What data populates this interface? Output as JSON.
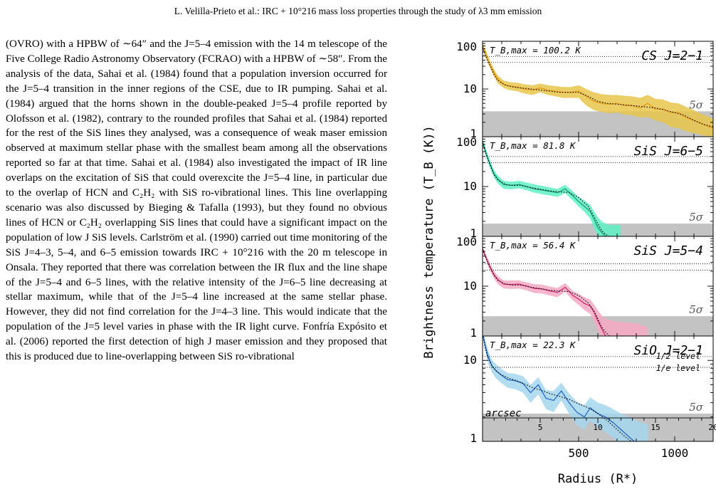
{
  "header": {
    "running_title": "L. Velilla-Prieto  et al.: IRC + 10°216 mass loss properties through the study of λ3 mm emission"
  },
  "body_text": "(OVRO) with a HPBW of ∼64″ and the J=5–4 emission with the 14 m telescope of the Five College Radio Astronomy Observatory (FCRAO) with a HPBW of ∼58″. From the analysis of the data, Sahai et al. (1984) found that a population inversion occurred for the J=5–4 transition in the inner regions of the CSE, due to IR pumping. Sahai et al. (1984) argued that the horns shown in the double-peaked J=5–4 profile reported by Olofsson et al. (1982), contrary to the rounded profiles that Sahai et al. (1984) reported for the rest of the SiS lines they analysed, was a consequence of weak maser emission observed at maximum stellar phase with the smallest beam among all the observations reported so far at that time. Sahai et al. (1984) also investigated the impact of IR line overlaps on the excitation of SiS that could overexcite the J=5–4 line, in particular due to the overlap of HCN and C₂H₂ with SiS ro-vibrational lines. This line overlapping scenario was also discussed by Bieging & Tafalla (1993), but they found no obvious lines of HCN or C₂H₂ overlapping SiS lines that could have a significant impact on the population of low J SiS levels. Carlström et al. (1990) carried out time monitoring of the SiS J=4–3, 5–4, and 6–5 emission towards IRC + 10°216 with the 20 m telescope in Onsala. They reported that there was correlation between the IR flux and the line shape of the J=5–4 and 6–5 lines, with the relative intensity of the J=6–5 line decreasing at stellar maximum, while that of the J=5–4 line increased at the same stellar phase. However, they did not find correlation for the J=4–3 line. This would indicate that the population of the J=5 level varies in phase with the IR light curve. Fonfría Expósito et al. (2006) reported the first detection of high J maser emission and they proposed that this is produced due to line-overlapping between SiS ro-vibrational",
  "chart_data": [
    {
      "type": "line",
      "ylabel": "Brightness temperature (T_B (K))",
      "xlabel": "Radius (R*)",
      "yscale": "log",
      "ylim": [
        1,
        100
      ],
      "xlim": [
        0,
        1200
      ],
      "ytick_labels": [
        "1",
        "10",
        "100"
      ],
      "grid": false,
      "title": "CS J=2−1",
      "tb_max_label": "T_B,max = 100.2 K",
      "noise_label": "5σ",
      "noise_level": 3.4,
      "level_half": 48,
      "level_e": 36,
      "color": "#e8c54a",
      "line_color": "#e89a10",
      "series": [
        {
          "x": [
            0,
            20,
            40,
            60,
            80,
            110,
            140,
            180,
            220,
            260,
            300,
            340,
            380,
            420,
            460,
            500,
            540,
            580,
            620,
            660,
            700,
            740,
            780,
            820,
            860,
            900,
            940,
            980,
            1020,
            1060,
            1100,
            1140,
            1180,
            1200
          ],
          "y": [
            80,
            50,
            32,
            22,
            16,
            12.5,
            11.5,
            11,
            10,
            9.5,
            10.5,
            9.5,
            9,
            8.5,
            8.5,
            9,
            7,
            5.5,
            5,
            4.8,
            5,
            4.5,
            4.5,
            4,
            5,
            3.8,
            3.8,
            3.2,
            3.2,
            2.5,
            2.2,
            1.9,
            1.6,
            1.5
          ],
          "band_lo": [
            70,
            42,
            27,
            18,
            13,
            10.5,
            9.5,
            9,
            8,
            7.5,
            8.5,
            7.5,
            7,
            6.5,
            6.5,
            6.5,
            4.5,
            3.6,
            3.3,
            3.1,
            3.2,
            2.9,
            2.8,
            2.5,
            2.6,
            2.2,
            2.0,
            1.6,
            1.5,
            1.3,
            1.2,
            1.1,
            1.0,
            1.0
          ],
          "band_hi": [
            95,
            60,
            38,
            26,
            19,
            15,
            14,
            13.5,
            12.5,
            12,
            13,
            12,
            11.5,
            11,
            11,
            12,
            10,
            8.5,
            7.8,
            7.5,
            7.5,
            7.2,
            7.0,
            6.5,
            7.5,
            6.2,
            6.0,
            5.2,
            5.0,
            4.2,
            3.6,
            3.0,
            2.6,
            2.3
          ]
        },
        {
          "x": [
            0,
            20,
            40,
            60,
            80,
            120,
            160,
            200,
            250,
            300,
            350,
            400,
            450,
            500,
            550,
            600,
            650,
            700,
            750,
            800,
            850,
            900,
            950,
            1000,
            1050,
            1100,
            1150,
            1200
          ],
          "y": [
            75,
            45,
            30,
            20,
            15,
            12,
            11,
            10.5,
            10,
            9.5,
            9,
            8.5,
            8.5,
            8.5,
            7,
            5.5,
            5,
            4.8,
            4.6,
            4.4,
            4.2,
            4,
            3.6,
            3.2,
            2.8,
            2.2,
            1.8,
            1.6
          ]
        }
      ]
    },
    {
      "type": "line",
      "yscale": "log",
      "ylim": [
        1,
        100
      ],
      "xlim": [
        0,
        1200
      ],
      "ytick_labels": [
        "1",
        "10",
        "100"
      ],
      "grid": false,
      "title": "SiS J=6−5",
      "tb_max_label": "T_B,max = 81.8 K",
      "noise_label": "5σ",
      "noise_level": 1.8,
      "level_half": 40,
      "level_e": 30,
      "color": "#5ef0c4",
      "line_color": "#0f9e78",
      "series": [
        {
          "x": [
            0,
            20,
            40,
            60,
            80,
            110,
            150,
            190,
            230,
            270,
            310,
            350,
            390,
            430,
            470,
            500,
            530,
            560,
            580,
            600,
            620,
            640,
            660,
            680,
            720
          ],
          "y": [
            80,
            45,
            28,
            18,
            14,
            11,
            10.5,
            11,
            10,
            9,
            8.5,
            8,
            7.5,
            9,
            6.5,
            5,
            4,
            3.2,
            2.2,
            1.5,
            1.2,
            1.0,
            0.9,
            0.85,
            0.8
          ],
          "band_lo": [
            70,
            38,
            23,
            15,
            11.5,
            9,
            8.8,
            9.2,
            8.4,
            7.5,
            7,
            6.6,
            6.2,
            7.4,
            5.2,
            4,
            3.1,
            2.3,
            1.5,
            1.0,
            0.8,
            0.7,
            0.6,
            0.6,
            0.6
          ],
          "band_hi": [
            92,
            52,
            32,
            21,
            16.5,
            13,
            12.5,
            13,
            12,
            11,
            10.3,
            9.6,
            9,
            10.8,
            8,
            6.2,
            5.2,
            4.3,
            3.2,
            2.4,
            2.0,
            1.8,
            1.7,
            1.7,
            1.7
          ]
        },
        {
          "x": [
            0,
            20,
            40,
            60,
            80,
            120,
            160,
            200,
            250,
            300,
            350,
            400,
            450,
            500,
            550,
            580,
            600,
            620,
            640,
            660
          ],
          "y": [
            75,
            42,
            26,
            17,
            13.5,
            11,
            10.5,
            10.5,
            9.5,
            8.8,
            8.2,
            7.8,
            7.6,
            6,
            4,
            2.5,
            1.8,
            1.3,
            1.1,
            1.0
          ]
        }
      ]
    },
    {
      "type": "line",
      "yscale": "log",
      "ylim": [
        1,
        100
      ],
      "xlim": [
        0,
        1200
      ],
      "ytick_labels": [
        "1",
        "10",
        "100"
      ],
      "grid": false,
      "title": "SiS J=5−4",
      "tb_max_label": "T_B,max = 56.4 K",
      "noise_label": "5σ",
      "noise_level": 2.5,
      "level_half": 28,
      "level_e": 21,
      "color": "#f7a9c4",
      "line_color": "#d02a70",
      "series": [
        {
          "x": [
            0,
            20,
            40,
            60,
            80,
            110,
            150,
            190,
            230,
            270,
            310,
            350,
            390,
            430,
            470,
            500,
            530,
            560,
            580,
            600,
            620,
            640,
            660,
            680,
            720,
            800,
            860
          ],
          "y": [
            56,
            36,
            24,
            17,
            13.5,
            11,
            10.8,
            11,
            10,
            9,
            8.8,
            8,
            7.5,
            9.5,
            6.5,
            5.5,
            4.5,
            4,
            3,
            2,
            1.4,
            1.0,
            0.9,
            0.85,
            0.8,
            0.8,
            0.8
          ],
          "band_lo": [
            50,
            31,
            20,
            14,
            11,
            9,
            8.8,
            9,
            8.2,
            7.3,
            7.1,
            6.5,
            6,
            7.7,
            5.2,
            4.2,
            3.3,
            2.8,
            2,
            1.3,
            0.9,
            0.7,
            0.6,
            0.6,
            0.6,
            0.6,
            0.6
          ],
          "band_hi": [
            63,
            42,
            28,
            20,
            16,
            13,
            13,
            13,
            12,
            11,
            10.7,
            9.8,
            9.2,
            11.5,
            8,
            7,
            6,
            5.4,
            4.3,
            3.3,
            2.6,
            2.2,
            2.1,
            2.0,
            1.9,
            1.8,
            1.5
          ]
        },
        {
          "x": [
            0,
            20,
            40,
            60,
            80,
            120,
            160,
            200,
            250,
            300,
            350,
            400,
            450,
            500,
            550,
            580,
            600,
            620,
            640,
            660
          ],
          "y": [
            55,
            35,
            23,
            16.5,
            13,
            11,
            10.5,
            10.5,
            9.6,
            8.9,
            8.3,
            8,
            7.8,
            6.5,
            4.6,
            3.2,
            2.2,
            1.5,
            1.2,
            1.0
          ]
        }
      ]
    },
    {
      "type": "line",
      "yscale": "log",
      "ylim": [
        1,
        20
      ],
      "xlim": [
        0,
        1200
      ],
      "ytick_labels": [
        "1",
        "10"
      ],
      "grid": false,
      "title": "SiO J=2−1",
      "tb_max_label": "T_B,max = 22.3 K",
      "noise_label": "5σ",
      "noise_level": 2.2,
      "level_half": 11.15,
      "level_e": 8.2,
      "level_half_label": "1/2 level",
      "level_e_label": "1/e level",
      "arcsec_label": "arcsec",
      "arcsec_ticks": [
        "5",
        "10",
        "15",
        "20"
      ],
      "arcsec_tick_positions_R": [
        300,
        600,
        900,
        1200
      ],
      "xtick_labels": [
        "500",
        "1000"
      ],
      "color": "#a4d6ec",
      "line_color": "#2a6ac9",
      "series": [
        {
          "x": [
            0,
            15,
            30,
            50,
            70,
            100,
            130,
            170,
            210,
            250,
            290,
            330,
            370,
            410,
            450,
            490,
            530,
            560,
            600,
            640,
            680,
            720,
            760,
            800,
            860
          ],
          "y": [
            22,
            15,
            11,
            8.5,
            7.5,
            6.5,
            5.8,
            5.6,
            5.2,
            4,
            5,
            3.4,
            3.2,
            4.2,
            3.0,
            2.3,
            2.0,
            2.6,
            2.2,
            2.0,
            1.7,
            1.4,
            1.15,
            0.95,
            0.85
          ],
          "band_lo": [
            20,
            12.5,
            9,
            7,
            6,
            5.2,
            4.6,
            4.4,
            4,
            3,
            3.8,
            2.5,
            2.3,
            3.2,
            2.2,
            1.6,
            1.4,
            1.8,
            1.5,
            1.3,
            1.1,
            0.9,
            0.8,
            0.7,
            0.7
          ],
          "band_hi": [
            24,
            17.5,
            13,
            10,
            9,
            7.8,
            7,
            6.8,
            6.4,
            5,
            6.2,
            4.3,
            4.2,
            5.3,
            3.9,
            3.1,
            2.8,
            3.5,
            3.0,
            2.8,
            2.5,
            2.2,
            2.0,
            1.8,
            1.6
          ]
        },
        {
          "x": [
            0,
            15,
            30,
            50,
            70,
            100,
            140,
            180,
            220,
            260,
            300,
            350,
            400,
            450,
            500,
            550,
            600,
            650,
            700,
            750,
            800
          ],
          "y": [
            21,
            14,
            10.5,
            8.4,
            7.4,
            6.6,
            6,
            5.6,
            5.1,
            4.6,
            4.3,
            3.9,
            3.6,
            3.3,
            2.9,
            2.6,
            2.2,
            1.8,
            1.4,
            1.1,
            0.9
          ]
        }
      ]
    }
  ]
}
